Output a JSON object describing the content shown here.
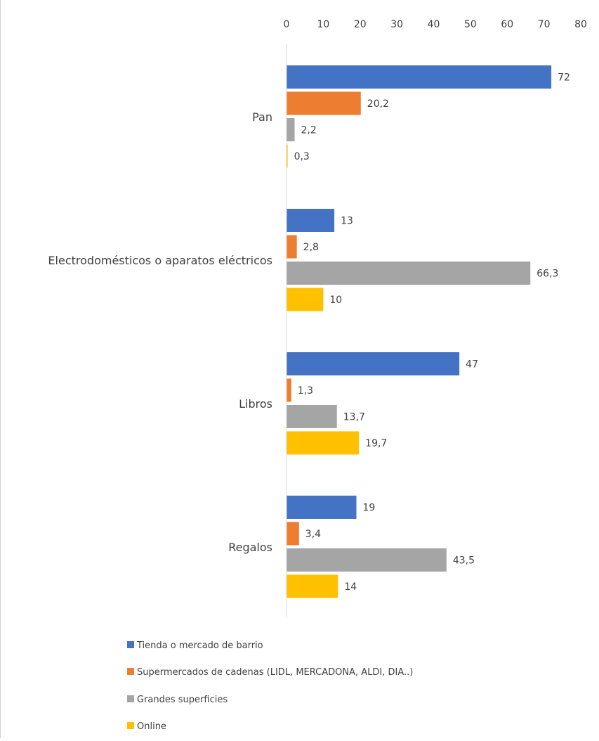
{
  "chart_data": {
    "type": "bar",
    "orientation": "horizontal",
    "title": "",
    "xlabel": "",
    "ylabel": "",
    "xlim": [
      0,
      80
    ],
    "ticks": [
      0,
      10,
      20,
      30,
      40,
      50,
      60,
      70,
      80
    ],
    "tick_labels": [
      "0",
      "10",
      "20",
      "30",
      "40",
      "50",
      "60",
      "70",
      "80"
    ],
    "x_axis_position": "top",
    "grid": false,
    "legend_position": "bottom",
    "categories": [
      "Pan",
      "Electrodomésticos o aparatos eléctricos",
      "Libros",
      "Regalos"
    ],
    "series": [
      {
        "name": "Tienda o mercado de barrio",
        "color": "#4472C4",
        "values": [
          72,
          13,
          47,
          19
        ],
        "labels": [
          "72",
          "13",
          "47",
          "19"
        ]
      },
      {
        "name": "Supermercados de cadenas (LIDL, MERCADONA, ALDI, DIA..)",
        "color": "#ED7D31",
        "values": [
          20.2,
          2.8,
          1.3,
          3.4
        ],
        "labels": [
          "20,2",
          "2,8",
          "1,3",
          "3,4"
        ]
      },
      {
        "name": "Grandes superficies",
        "color": "#A5A5A5",
        "values": [
          2.2,
          66.3,
          13.7,
          43.5
        ],
        "labels": [
          "2,2",
          "66,3",
          "13,7",
          "43,5"
        ]
      },
      {
        "name": "Online",
        "color": "#FFC000",
        "values": [
          0.3,
          10,
          19.7,
          14
        ],
        "labels": [
          "0,3",
          "10",
          "19,7",
          "14"
        ]
      }
    ]
  }
}
